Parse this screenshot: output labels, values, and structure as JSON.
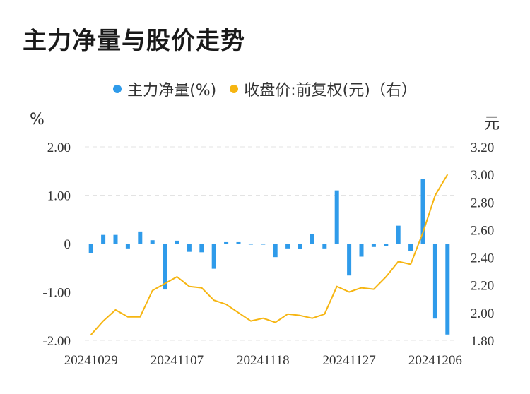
{
  "title": "主力净量与股价走势",
  "legend": {
    "series1": "主力净量(%)",
    "series2": "收盘价:前复权(元)（右）"
  },
  "colors": {
    "bar": "#2f9bea",
    "line": "#f6b511",
    "grid": "#e3e3e3"
  },
  "chart_data": {
    "type": "bar+line",
    "left_unit": "%",
    "right_unit": "元",
    "left_ylim": [
      -2,
      2
    ],
    "right_ylim": [
      1.8,
      3.2
    ],
    "left_ticks": [
      "2.00",
      "1.00",
      "0",
      "-1.00",
      "-2.00"
    ],
    "right_ticks": [
      "3.20",
      "3.00",
      "2.80",
      "2.60",
      "2.40",
      "2.20",
      "2.00",
      "1.80"
    ],
    "x_labels": [
      "20241029",
      "20241107",
      "20241118",
      "20241127",
      "20241206"
    ],
    "x_label_index": [
      0,
      7,
      14,
      21,
      28
    ],
    "bar_values": [
      -0.2,
      0.18,
      0.18,
      -0.1,
      0.25,
      0.07,
      -0.95,
      0.06,
      -0.17,
      -0.18,
      -0.52,
      0.03,
      0.03,
      -0.02,
      -0.02,
      -0.28,
      -0.1,
      -0.11,
      0.2,
      -0.1,
      1.1,
      -0.66,
      -0.27,
      -0.07,
      -0.05,
      0.37,
      -0.15,
      1.33,
      -1.55,
      -1.88
    ],
    "line_values": [
      1.84,
      1.94,
      2.02,
      1.97,
      1.97,
      2.16,
      2.21,
      2.26,
      2.19,
      2.18,
      2.09,
      2.06,
      2.0,
      1.94,
      1.96,
      1.93,
      1.99,
      1.98,
      1.96,
      1.99,
      2.19,
      2.15,
      2.18,
      2.17,
      2.26,
      2.37,
      2.35,
      2.58,
      2.85,
      3.0
    ]
  }
}
